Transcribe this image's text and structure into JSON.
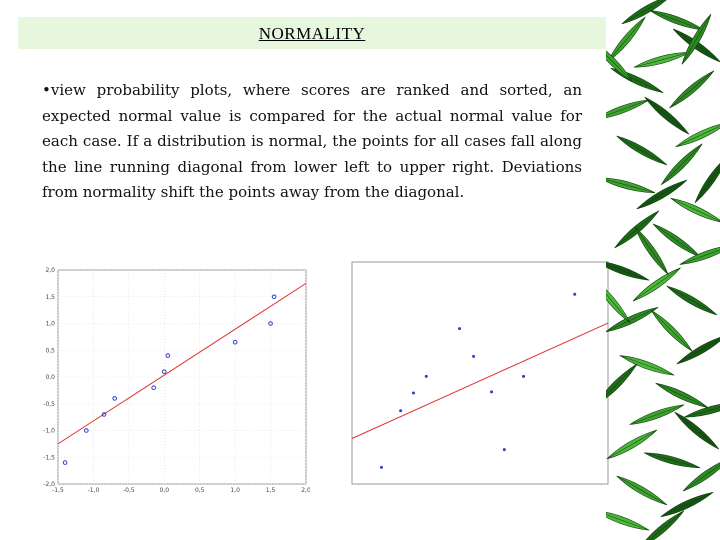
{
  "slide": {
    "title": "NORMALITY",
    "bullet": "•",
    "body": "view probability plots, where scores are ranked and sorted, an expected normal value is compared for the actual normal value for each case. If a distribution is normal, the points for all cases fall along the line running diagonal from lower left to upper right. Deviations from normality shift the points away from the diagonal."
  },
  "colors": {
    "title_bg": "#e6f7de",
    "fit_line": "#e03030",
    "points": "#2a3fd0",
    "plot_frame": "#9a9a9a",
    "grid": "#d8d8d8"
  },
  "chart_data": [
    {
      "type": "scatter",
      "title": "",
      "xlabel": "",
      "ylabel": "",
      "x_ticks": [
        "-1,5",
        "-1,0",
        "-0,5",
        "0,0",
        "0,5",
        "1,0",
        "1,5",
        "2,0"
      ],
      "y_ticks": [
        "2,0",
        "1,5",
        "1,0",
        "0,5",
        "0,0",
        "-0,5",
        "-1,0",
        "-1,5",
        "-2,0"
      ],
      "xlim": [
        -1.5,
        2.0
      ],
      "ylim": [
        -2.0,
        2.0
      ],
      "grid": true,
      "points": [
        {
          "x": -1.4,
          "y": -1.6
        },
        {
          "x": -1.1,
          "y": -1.0
        },
        {
          "x": -0.85,
          "y": -0.7
        },
        {
          "x": -0.7,
          "y": -0.4
        },
        {
          "x": -0.15,
          "y": -0.2
        },
        {
          "x": 0.0,
          "y": 0.1
        },
        {
          "x": 0.05,
          "y": 0.4
        },
        {
          "x": 1.0,
          "y": 0.65
        },
        {
          "x": 1.5,
          "y": 1.0
        },
        {
          "x": 1.55,
          "y": 1.5
        }
      ],
      "fit_line": [
        [
          -1.5,
          -1.25
        ],
        [
          2.0,
          1.75
        ]
      ]
    },
    {
      "type": "scatter",
      "title": "",
      "xlabel": "",
      "ylabel": "",
      "grid": false,
      "xlim": [
        0,
        10
      ],
      "ylim": [
        0,
        10
      ],
      "points": [
        {
          "x": 1.15,
          "y": 0.75
        },
        {
          "x": 1.9,
          "y": 3.3
        },
        {
          "x": 2.4,
          "y": 4.1
        },
        {
          "x": 2.9,
          "y": 4.85
        },
        {
          "x": 4.2,
          "y": 7.0
        },
        {
          "x": 4.75,
          "y": 5.75
        },
        {
          "x": 5.45,
          "y": 4.15
        },
        {
          "x": 5.95,
          "y": 1.55
        },
        {
          "x": 6.7,
          "y": 4.85
        },
        {
          "x": 8.7,
          "y": 8.55
        }
      ],
      "fit_line": [
        [
          0,
          2.05
        ],
        [
          10,
          7.25
        ]
      ]
    }
  ]
}
